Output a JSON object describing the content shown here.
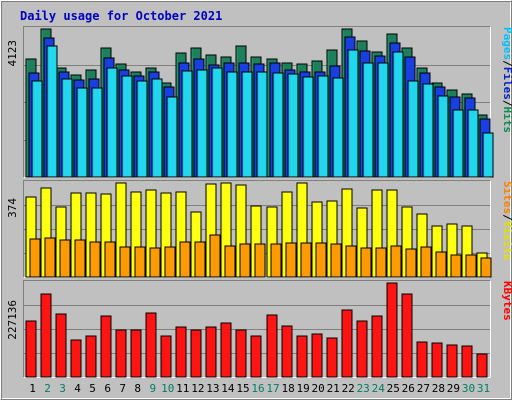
{
  "chart_data": {
    "type": "bar",
    "title": "Daily usage for October 2021",
    "categories": [
      "1",
      "2",
      "3",
      "4",
      "5",
      "6",
      "7",
      "8",
      "9",
      "10",
      "11",
      "12",
      "13",
      "14",
      "15",
      "16",
      "17",
      "18",
      "19",
      "20",
      "21",
      "22",
      "23",
      "24",
      "25",
      "26",
      "27",
      "28",
      "29",
      "30",
      "31"
    ],
    "weekend_days": [
      "2",
      "3",
      "9",
      "10",
      "16",
      "17",
      "23",
      "24",
      "30",
      "31"
    ],
    "panels": [
      {
        "id": "hits-files-pages",
        "max_label": "4123",
        "ymax": 4123,
        "side_labels": [
          {
            "text": "Pages",
            "color": "#00c0ff"
          },
          {
            "text": "Files",
            "color": "#0020c0"
          },
          {
            "text": "Hits",
            "color": "#128a50"
          }
        ],
        "series": [
          {
            "name": "Hits",
            "color": "#1e7f5c",
            "values": [
              3300,
              4123,
              3050,
              2850,
              3000,
              3600,
              3150,
              2950,
              3050,
              2650,
              3450,
              3600,
              3400,
              3350,
              3650,
              3350,
              3300,
              3200,
              3150,
              3250,
              3550,
              4123,
              3800,
              3500,
              3980,
              3600,
              3050,
              2650,
              2450,
              2350,
              1750
            ]
          },
          {
            "name": "Files",
            "color": "#1a3fe0",
            "values": [
              2900,
              3870,
              2930,
              2720,
              2760,
              3320,
              3000,
              2830,
              2930,
              2530,
              3200,
              3300,
              3130,
              3200,
              3200,
              3170,
              3200,
              2990,
              2930,
              2950,
              3100,
              3900,
              3520,
              3370,
              3750,
              3360,
              2900,
              2540,
              2250,
              2220,
              1650
            ]
          },
          {
            "name": "Pages",
            "color": "#22d6ee",
            "values": [
              2700,
              3660,
              2740,
              2500,
              2500,
              3040,
              2830,
              2690,
              2750,
              2260,
              2980,
              2990,
              3050,
              2950,
              2950,
              2940,
              2920,
              2880,
              2810,
              2820,
              2780,
              3540,
              3200,
              3200,
              3500,
              2680,
              2600,
              2270,
              1910,
              1900,
              1270
            ]
          }
        ]
      },
      {
        "id": "visits-sites",
        "max_label": "374",
        "ymax": 374,
        "side_labels": [
          {
            "text": "Sites",
            "color": "#ff8000"
          },
          {
            "text": "Visits",
            "color": "#e0e000"
          }
        ],
        "series": [
          {
            "name": "Visits",
            "color": "#ffff10",
            "values": [
              320,
              355,
              280,
              335,
              335,
              330,
              374,
              340,
              345,
              335,
              340,
              260,
              370,
              374,
              365,
              285,
              280,
              340,
              374,
              300,
              305,
              350,
              275,
              345,
              345,
              280,
              255,
              205,
              215,
              205,
              100
            ]
          },
          {
            "name": "Sites",
            "color": "#ff9a00",
            "values": [
              155,
              160,
              150,
              150,
              145,
              145,
              125,
              125,
              120,
              125,
              145,
              145,
              172,
              130,
              135,
              135,
              135,
              140,
              140,
              140,
              135,
              130,
              120,
              120,
              130,
              115,
              125,
              105,
              95,
              95,
              80
            ]
          }
        ]
      },
      {
        "id": "kbytes",
        "max_label": "227136",
        "ymax": 227136,
        "side_labels": [
          {
            "text": "KBytes",
            "color": "#ff0000"
          }
        ],
        "series": [
          {
            "name": "KBytes",
            "color": "#ff1414",
            "values": [
              137000,
              202000,
              153000,
              93000,
              102000,
              150000,
              115000,
              115000,
              155000,
              102000,
              122000,
              116000,
              122000,
              132000,
              115000,
              101000,
              152000,
              126000,
              101000,
              107000,
              97000,
              164000,
              137000,
              150000,
              227136,
              200000,
              87000,
              86000,
              80000,
              79000,
              58000
            ]
          }
        ]
      }
    ]
  }
}
